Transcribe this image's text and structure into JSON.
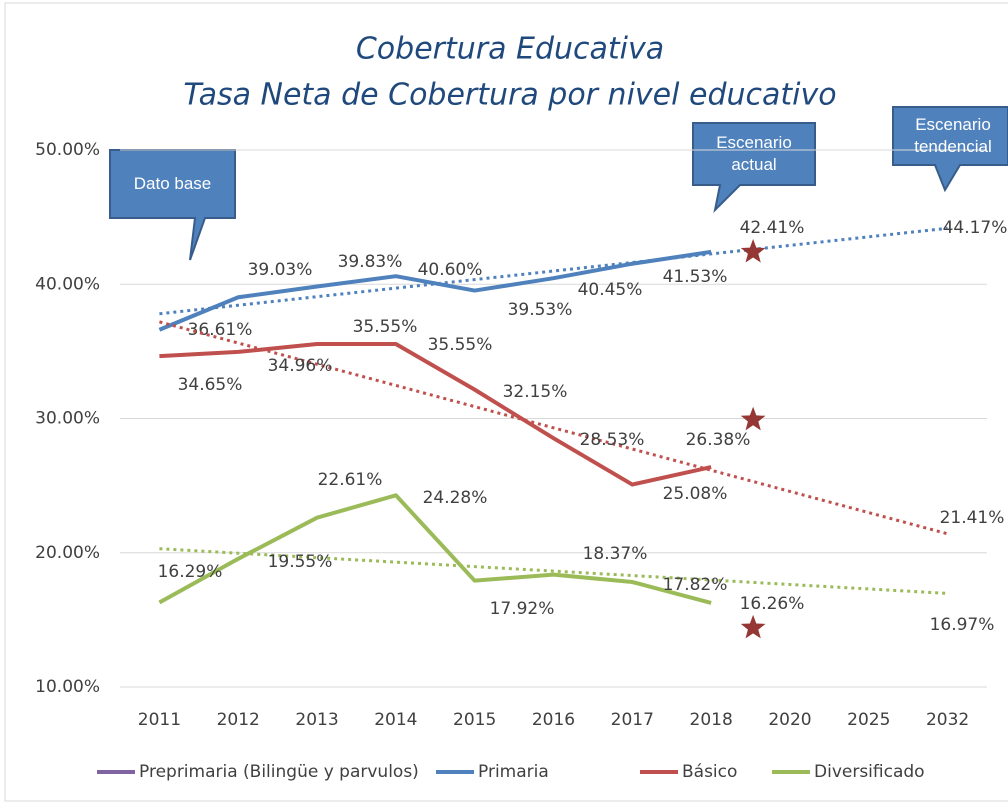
{
  "chart_data": {
    "type": "line",
    "title": "Cobertura Educativa",
    "subtitle": "Tasa Neta de Cobertura por nivel educativo",
    "categories": [
      "2011",
      "2012",
      "2013",
      "2014",
      "2015",
      "2016",
      "2017",
      "2018",
      "2020",
      "2025",
      "2032"
    ],
    "ylim": [
      10,
      50
    ],
    "yticks": [
      {
        "value": 10,
        "label": "10.00%"
      },
      {
        "value": 20,
        "label": "20.00%"
      },
      {
        "value": 30,
        "label": "30.00%"
      },
      {
        "value": 40,
        "label": "40.00%"
      },
      {
        "value": 50,
        "label": "50.00%"
      }
    ],
    "grid": true,
    "legend": "bottom",
    "annotations": [
      "Dato base",
      "Escenario actual",
      "Escenario tendencial"
    ],
    "series": [
      {
        "name": "Preprimaria (Bilingüe y parvulos)",
        "color": "#8064a2",
        "values": [
          null,
          null,
          null,
          null,
          null,
          null,
          null,
          null,
          null,
          null,
          null
        ]
      },
      {
        "name": "Primaria",
        "color": "#4f81bd",
        "values": [
          36.61,
          39.03,
          39.83,
          40.6,
          39.53,
          40.45,
          41.53,
          42.41,
          null,
          null,
          null
        ],
        "value_labels": [
          "36.61%",
          "39.03%",
          "39.83%",
          "40.60%",
          "39.53%",
          "40.45%",
          "41.53%",
          "42.41%",
          null,
          null,
          null
        ],
        "trend": [
          37.8,
          44.17
        ],
        "trend_labels": [
          null,
          "44.17%"
        ],
        "target": 42.4
      },
      {
        "name": "Básico",
        "color": "#c0504d",
        "values": [
          34.65,
          34.96,
          35.55,
          35.55,
          32.15,
          28.53,
          25.08,
          26.38,
          null,
          null,
          null
        ],
        "value_labels": [
          "34.65%",
          "34.96%",
          "35.55%",
          "35.55%",
          "32.15%",
          "28.53%",
          "25.08%",
          "26.38%",
          null,
          null,
          null
        ],
        "trend": [
          37.2,
          21.41
        ],
        "trend_labels": [
          null,
          "21.41%"
        ],
        "target": 29.9
      },
      {
        "name": "Diversificado",
        "color": "#9bbb59",
        "values": [
          16.29,
          19.55,
          22.61,
          24.28,
          17.92,
          18.37,
          17.82,
          16.26,
          null,
          null,
          null
        ],
        "value_labels": [
          "16.29%",
          "19.55%",
          "22.61%",
          "24.28%",
          "17.92%",
          "18.37%",
          "17.82%",
          "16.26%",
          null,
          null,
          null
        ],
        "trend": [
          20.3,
          16.97
        ],
        "trend_labels": [
          null,
          "16.97%"
        ],
        "target": 14.4
      }
    ]
  }
}
